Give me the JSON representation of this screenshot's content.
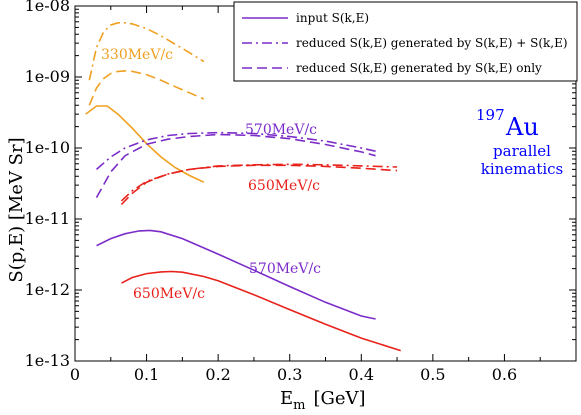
{
  "chart_data": {
    "type": "line",
    "xlabel_main": "E",
    "xlabel_sub": "m",
    "xlabel_unit": "[GeV]",
    "ylabel": "S(p,E)  [MeV Sr]",
    "xlim": [
      0,
      0.7
    ],
    "ylim": [
      1e-13,
      1e-08
    ],
    "yscale": "log",
    "grid": false,
    "legend_position": "top-right",
    "x_ticks": [
      {
        "v": 0,
        "label": "0"
      },
      {
        "v": 0.1,
        "label": "0.1"
      },
      {
        "v": 0.2,
        "label": "0.2"
      },
      {
        "v": 0.3,
        "label": "0.3"
      },
      {
        "v": 0.4,
        "label": "0.4"
      },
      {
        "v": 0.5,
        "label": "0.5"
      },
      {
        "v": 0.6,
        "label": "0.6"
      }
    ],
    "y_ticks": [
      {
        "v": 1e-08,
        "label": "1e-08"
      },
      {
        "v": 1e-09,
        "label": "1e-09"
      },
      {
        "v": 1e-10,
        "label": "1e-10"
      },
      {
        "v": 1e-11,
        "label": "1e-11"
      },
      {
        "v": 1e-12,
        "label": "1e-12"
      },
      {
        "v": 1e-13,
        "label": "1e-13"
      }
    ],
    "legend": [
      {
        "style": "solid",
        "color": "#7b2cc9",
        "text": "input S(k,E)"
      },
      {
        "style": "dashdot",
        "color": "#7b2cc9",
        "text": "reduced S(k,E) generated by S(k,E) + S(k,E)"
      },
      {
        "style": "dashed",
        "color": "#7b2cc9",
        "text": "reduced S(k,E) generated by S(k,E)  only"
      }
    ],
    "annotations": {
      "nucleus_mass": "197",
      "nucleus_symbol": "Au",
      "kinematics_line1": "parallel",
      "kinematics_line2": "kinematics",
      "label_330": "330MeV/c",
      "label_570_top": "570MeV/c",
      "label_650_top": "650MeV/c",
      "label_570_bottom": "570MeV/c",
      "label_650_bottom": "650MeV/c"
    },
    "series": [
      {
        "group": "330MeV/c",
        "style": "dashdot",
        "color": "#f0a020",
        "x": [
          0.02,
          0.03,
          0.04,
          0.05,
          0.06,
          0.07,
          0.08,
          0.1,
          0.12,
          0.14,
          0.16,
          0.18
        ],
        "y": [
          9e-10,
          2.6e-09,
          4.3e-09,
          5.4e-09,
          5.8e-09,
          5.8e-09,
          5.6e-09,
          4.8e-09,
          3.8e-09,
          2.9e-09,
          2.2e-09,
          1.65e-09
        ]
      },
      {
        "group": "330MeV/c",
        "style": "dashed",
        "color": "#f0a020",
        "x": [
          0.02,
          0.03,
          0.04,
          0.05,
          0.06,
          0.07,
          0.08,
          0.1,
          0.12,
          0.14,
          0.16,
          0.18
        ],
        "y": [
          4e-10,
          7e-10,
          9.5e-10,
          1.12e-09,
          1.2e-09,
          1.22e-09,
          1.2e-09,
          1.08e-09,
          9e-10,
          7.3e-10,
          6e-10,
          4.9e-10
        ]
      },
      {
        "group": "330MeV/c",
        "style": "solid",
        "color": "#f0a020",
        "x": [
          0.015,
          0.03,
          0.045,
          0.06,
          0.08,
          0.1,
          0.12,
          0.14,
          0.16,
          0.18
        ],
        "y": [
          3e-10,
          3.9e-10,
          3.9e-10,
          3e-10,
          1.9e-10,
          1.15e-10,
          7.5e-11,
          5.3e-11,
          4.1e-11,
          3.3e-11
        ]
      },
      {
        "group": "570MeV/c",
        "style": "dashdot",
        "color": "#7b2cc9",
        "x": [
          0.03,
          0.05,
          0.07,
          0.1,
          0.13,
          0.16,
          0.2,
          0.25,
          0.3,
          0.35,
          0.4,
          0.42
        ],
        "y": [
          5e-11,
          7.5e-11,
          1e-10,
          1.3e-10,
          1.5e-10,
          1.6e-10,
          1.65e-10,
          1.6e-10,
          1.45e-10,
          1.25e-10,
          1e-10,
          9e-11
        ]
      },
      {
        "group": "570MeV/c",
        "style": "dashed",
        "color": "#7b2cc9",
        "x": [
          0.03,
          0.05,
          0.07,
          0.1,
          0.13,
          0.16,
          0.2,
          0.25,
          0.3,
          0.35,
          0.4,
          0.42
        ],
        "y": [
          2e-11,
          4.6e-11,
          7.8e-11,
          1.13e-10,
          1.33e-10,
          1.45e-10,
          1.55e-10,
          1.5e-10,
          1.35e-10,
          1.12e-10,
          8.8e-11,
          7.8e-11
        ]
      },
      {
        "group": "650MeV/c",
        "style": "dashdot",
        "color": "#e8221b",
        "x": [
          0.065,
          0.08,
          0.1,
          0.13,
          0.16,
          0.2,
          0.25,
          0.3,
          0.35,
          0.4,
          0.45
        ],
        "y": [
          1.8e-11,
          2.5e-11,
          3.4e-11,
          4.3e-11,
          5e-11,
          5.6e-11,
          5.8e-11,
          5.9e-11,
          5.8e-11,
          5.6e-11,
          5.4e-11
        ]
      },
      {
        "group": "650MeV/c",
        "style": "dashed",
        "color": "#e8221b",
        "x": [
          0.065,
          0.08,
          0.1,
          0.13,
          0.16,
          0.2,
          0.25,
          0.3,
          0.35,
          0.4,
          0.45
        ],
        "y": [
          1.6e-11,
          2.3e-11,
          3.3e-11,
          4.3e-11,
          5e-11,
          5.5e-11,
          5.7e-11,
          5.7e-11,
          5.5e-11,
          5.2e-11,
          4.8e-11
        ]
      },
      {
        "group": "570MeV/c",
        "style": "solid",
        "color": "#7b2cc9",
        "x": [
          0.03,
          0.05,
          0.07,
          0.09,
          0.105,
          0.12,
          0.15,
          0.2,
          0.25,
          0.3,
          0.35,
          0.4,
          0.42
        ],
        "y": [
          4.2e-12,
          5.3e-12,
          6.2e-12,
          6.8e-12,
          6.9e-12,
          6.6e-12,
          5.3e-12,
          3.2e-12,
          1.9e-12,
          1.12e-12,
          6.7e-13,
          4.3e-13,
          3.9e-13
        ]
      },
      {
        "group": "650MeV/c",
        "style": "solid",
        "color": "#e8221b",
        "x": [
          0.065,
          0.08,
          0.1,
          0.12,
          0.135,
          0.15,
          0.18,
          0.2,
          0.25,
          0.3,
          0.35,
          0.4,
          0.455
        ],
        "y": [
          1.25e-12,
          1.5e-12,
          1.7e-12,
          1.8e-12,
          1.82e-12,
          1.78e-12,
          1.55e-12,
          1.35e-12,
          8.6e-13,
          5.3e-13,
          3.3e-13,
          2.1e-13,
          1.4e-13
        ]
      }
    ]
  }
}
